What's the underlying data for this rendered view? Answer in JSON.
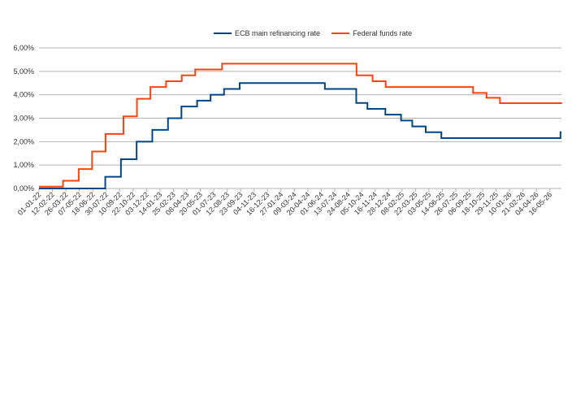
{
  "chart_data": {
    "type": "step-line",
    "xticks": [
      "01-01-22",
      "12-02-22",
      "26-03-22",
      "07-05-22",
      "18-06-22",
      "30-07-22",
      "10-09-22",
      "22-10-22",
      "03-12-22",
      "14-01-23",
      "25-02-23",
      "08-04-23",
      "20-05-23",
      "01-07-23",
      "12-08-23",
      "23-09-23",
      "04-11-23",
      "16-12-23",
      "27-01-24",
      "09-03-24",
      "20-04-24",
      "01-06-24",
      "13-07-24",
      "24-08-24",
      "05-10-24",
      "16-11-24",
      "28-12-24",
      "08-02-25",
      "22-03-25",
      "03-05-25",
      "14-06-25",
      "26-07-25",
      "06-09-25",
      "18-10-25",
      "29-11-25",
      "10-01-26",
      "21-02-26",
      "04-04-26",
      "16-05-26"
    ],
    "xlim": [
      "01-01-22",
      "21-06-26"
    ],
    "ylim": [
      0,
      6
    ],
    "yticks": [
      {
        "value": 0,
        "label": "0,00%"
      },
      {
        "value": 1,
        "label": "1,00%"
      },
      {
        "value": 2,
        "label": "2,00%"
      },
      {
        "value": 3,
        "label": "3,00%"
      },
      {
        "value": 4,
        "label": "4,00%"
      },
      {
        "value": 5,
        "label": "5,00%"
      },
      {
        "value": 6,
        "label": "6,00%"
      }
    ],
    "grid": true,
    "legend": "top",
    "series": [
      {
        "name": "ECB main refinancing rate",
        "color": "#004586",
        "x": [
          "01-01-22",
          "27-07-22",
          "14-09-22",
          "02-11-22",
          "21-12-22",
          "08-02-23",
          "22-03-23",
          "10-05-23",
          "21-06-23",
          "02-08-23",
          "20-09-23",
          "12-06-24",
          "18-09-24",
          "23-10-24",
          "18-12-24",
          "05-02-25",
          "12-03-25",
          "23-04-25",
          "11-06-25",
          "18-06-26",
          "21-06-26"
        ],
        "values": [
          0,
          0.5,
          1.25,
          2,
          2.5,
          3,
          3.5,
          3.75,
          4,
          4.25,
          4.5,
          4.25,
          3.65,
          3.4,
          3.15,
          2.9,
          2.65,
          2.4,
          2.15,
          2.4,
          2.4
        ]
      },
      {
        "name": "Federal funds rate",
        "color": "#ff420e",
        "x": [
          "01-01-22",
          "17-03-22",
          "05-05-22",
          "16-06-22",
          "28-07-22",
          "22-09-22",
          "03-11-22",
          "15-12-22",
          "02-02-23",
          "23-03-23",
          "04-05-23",
          "27-07-23",
          "19-09-24",
          "08-11-24",
          "19-12-24",
          "18-09-25",
          "30-10-25",
          "11-12-25",
          "21-06-26"
        ],
        "values": [
          0.08,
          0.33,
          0.83,
          1.58,
          2.33,
          3.08,
          3.83,
          4.33,
          4.58,
          4.83,
          5.08,
          5.33,
          4.83,
          4.58,
          4.33,
          4.08,
          3.87,
          3.64,
          3.62
        ]
      }
    ]
  }
}
